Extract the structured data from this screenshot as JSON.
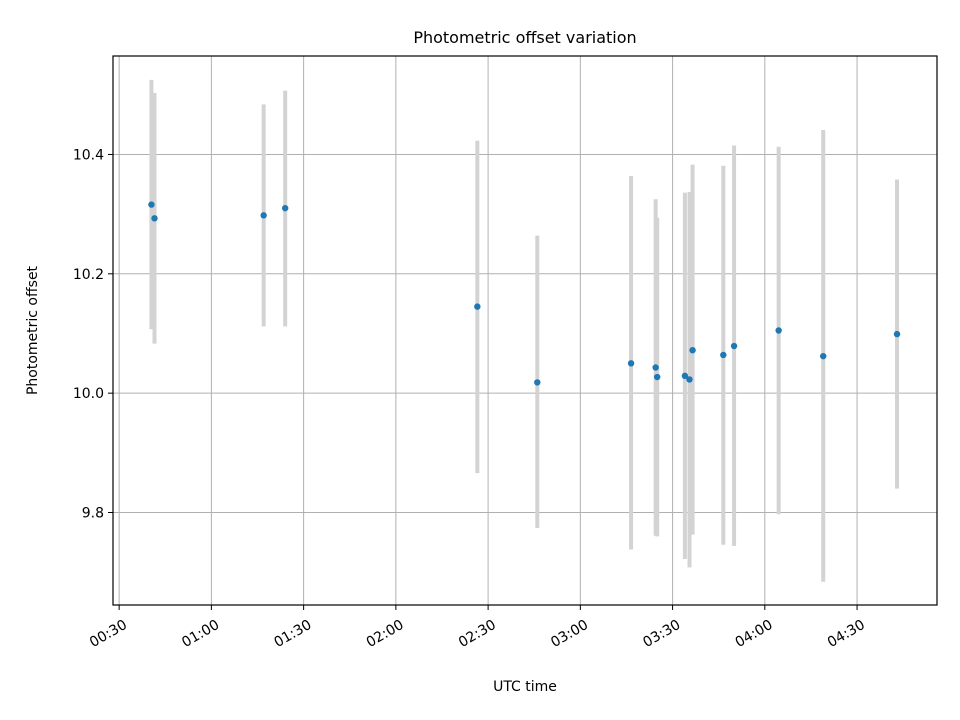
{
  "chart_data": {
    "type": "scatter",
    "title": "Photometric offset variation",
    "xlabel": "UTC time",
    "ylabel": "Photometric offset",
    "x_unit": "UTC time (HH:MM)",
    "xlim": [
      "00:28",
      "04:56"
    ],
    "ylim": [
      9.645,
      10.565
    ],
    "grid": true,
    "xticks": [
      "00:30",
      "01:00",
      "01:30",
      "02:00",
      "02:30",
      "03:00",
      "03:30",
      "04:00",
      "04:30"
    ],
    "yticks": [
      9.8,
      10.0,
      10.2,
      10.4
    ],
    "ytick_labels": [
      "9.8",
      "10.0",
      "10.2",
      "10.4"
    ],
    "marker_color": "#1f77b4",
    "errorbar_color": "#d3d3d3",
    "points": [
      {
        "x": "00:40:30",
        "y": 10.316,
        "ylow": 10.107,
        "yhigh": 10.525
      },
      {
        "x": "00:41:30",
        "y": 10.293,
        "ylow": 10.083,
        "yhigh": 10.503
      },
      {
        "x": "01:17:00",
        "y": 10.298,
        "ylow": 10.112,
        "yhigh": 10.484
      },
      {
        "x": "01:24:00",
        "y": 10.31,
        "ylow": 10.112,
        "yhigh": 10.507
      },
      {
        "x": "02:26:30",
        "y": 10.145,
        "ylow": 9.866,
        "yhigh": 10.423
      },
      {
        "x": "02:46:00",
        "y": 10.018,
        "ylow": 9.774,
        "yhigh": 10.264
      },
      {
        "x": "03:16:30",
        "y": 10.05,
        "ylow": 9.738,
        "yhigh": 10.364
      },
      {
        "x": "03:24:30",
        "y": 10.043,
        "ylow": 9.761,
        "yhigh": 10.325
      },
      {
        "x": "03:25:00",
        "y": 10.027,
        "ylow": 9.76,
        "yhigh": 10.294
      },
      {
        "x": "03:34:00",
        "y": 10.029,
        "ylow": 9.722,
        "yhigh": 10.336
      },
      {
        "x": "03:35:30",
        "y": 10.023,
        "ylow": 9.708,
        "yhigh": 10.337
      },
      {
        "x": "03:36:30",
        "y": 10.072,
        "ylow": 9.763,
        "yhigh": 10.383
      },
      {
        "x": "03:46:30",
        "y": 10.064,
        "ylow": 9.746,
        "yhigh": 10.381
      },
      {
        "x": "03:50:00",
        "y": 10.079,
        "ylow": 9.744,
        "yhigh": 10.415
      },
      {
        "x": "04:04:30",
        "y": 10.105,
        "ylow": 9.797,
        "yhigh": 10.413
      },
      {
        "x": "04:19:00",
        "y": 10.062,
        "ylow": 9.684,
        "yhigh": 10.441
      },
      {
        "x": "04:43:00",
        "y": 10.099,
        "ylow": 9.84,
        "yhigh": 10.358
      }
    ]
  }
}
